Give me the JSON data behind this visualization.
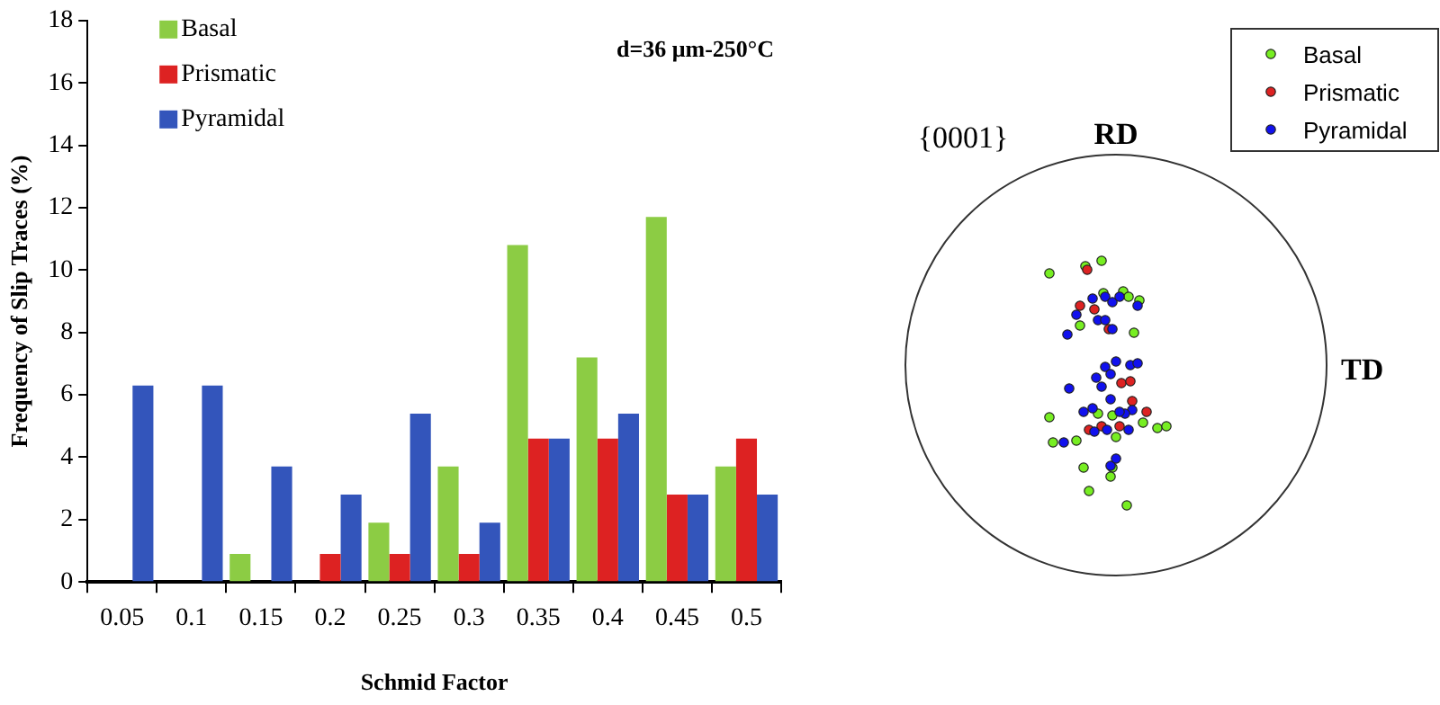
{
  "chart_data": [
    {
      "type": "bar",
      "xlabel": "Schmid Factor",
      "ylabel": "Frequency of Slip Traces (%)",
      "annotations": [
        "d=36 μm-250°C"
      ],
      "categories": [
        "0.05",
        "0.1",
        "0.15",
        "0.2",
        "0.25",
        "0.3",
        "0.35",
        "0.4",
        "0.45",
        "0.5"
      ],
      "series": [
        {
          "name": "Basal",
          "color": "#8ccc44",
          "values": [
            0,
            0,
            0.9,
            0,
            1.9,
            3.7,
            10.8,
            7.2,
            11.7,
            3.7
          ]
        },
        {
          "name": "Prismatic",
          "color": "#dd2222",
          "values": [
            0,
            0,
            0,
            0.9,
            0.9,
            0.9,
            4.6,
            4.6,
            2.8,
            4.6
          ]
        },
        {
          "name": "Pyramidal",
          "color": "#3355bb",
          "values": [
            6.3,
            6.3,
            3.7,
            2.8,
            5.4,
            1.9,
            4.6,
            5.4,
            2.8,
            2.8
          ]
        }
      ],
      "ylim": [
        0,
        18
      ],
      "yticks": [
        0,
        2,
        4,
        6,
        8,
        10,
        12,
        14,
        16,
        18
      ],
      "grid": false,
      "legend": "top left"
    },
    {
      "type": "other",
      "title": "{0001}",
      "annotations": [
        "RD",
        "TD"
      ],
      "series": [
        {
          "name": "Basal",
          "color": "#77ee22"
        },
        {
          "name": "Prismatic",
          "color": "#dd2222"
        },
        {
          "name": "Pyramidal",
          "color": "#1111ee"
        }
      ],
      "legend": "top right"
    }
  ]
}
